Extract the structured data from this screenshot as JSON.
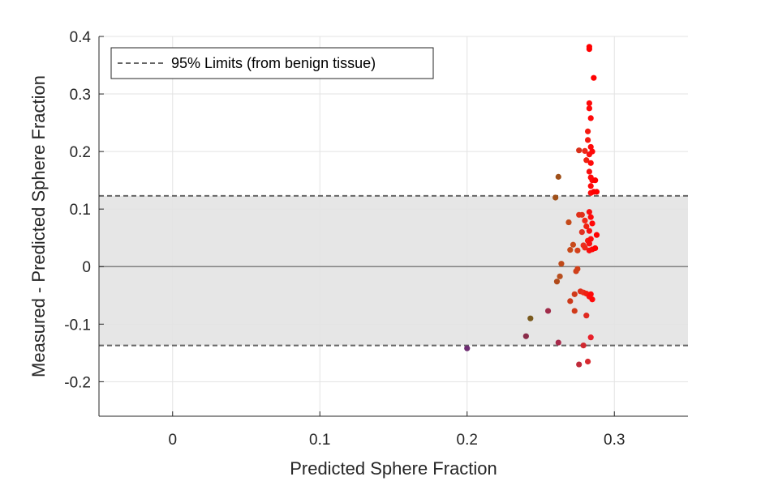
{
  "chart_data": {
    "type": "scatter",
    "xlabel": "Predicted Sphere Fraction",
    "ylabel": "Measured - Predicted Sphere Fraction",
    "xlim": [
      -0.05,
      0.35
    ],
    "ylim": [
      -0.26,
      0.4
    ],
    "xticks": [
      0,
      0.1,
      0.2,
      0.3
    ],
    "xtick_labels": [
      "0",
      "0.1",
      "0.2",
      "0.3"
    ],
    "yticks": [
      -0.2,
      -0.1,
      0,
      0.1,
      0.2,
      0.3,
      0.4
    ],
    "ytick_labels": [
      "-0.2",
      "-0.1",
      "0",
      "0.1",
      "0.2",
      "0.3",
      "0.4"
    ],
    "grid": true,
    "legend_position": "top-left",
    "legend": [
      {
        "label": "95% Limits (from benign tissue)",
        "style": "dashed",
        "color": "#666666"
      }
    ],
    "limits": {
      "upper": 0.123,
      "lower": -0.137
    },
    "zero_line": 0,
    "colors": {
      "band": "#e6e6e6",
      "limit_line": "#666666",
      "zero_line": "#808080",
      "grid": "#e3e3e3",
      "axis": "#262626"
    },
    "points": [
      {
        "x": 0.2,
        "y": -0.142,
        "color": "#6f2d73"
      },
      {
        "x": 0.24,
        "y": -0.121,
        "color": "#8a2c4a"
      },
      {
        "x": 0.243,
        "y": -0.09,
        "color": "#7a5a1e"
      },
      {
        "x": 0.255,
        "y": -0.077,
        "color": "#a02c4a"
      },
      {
        "x": 0.26,
        "y": 0.12,
        "color": "#a0501a"
      },
      {
        "x": 0.261,
        "y": -0.026,
        "color": "#b04a1a"
      },
      {
        "x": 0.262,
        "y": 0.156,
        "color": "#a0501a"
      },
      {
        "x": 0.262,
        "y": -0.132,
        "color": "#a82a4a"
      },
      {
        "x": 0.263,
        "y": -0.017,
        "color": "#b85020"
      },
      {
        "x": 0.264,
        "y": 0.005,
        "color": "#c04a1a"
      },
      {
        "x": 0.269,
        "y": 0.077,
        "color": "#c44a1a"
      },
      {
        "x": 0.27,
        "y": 0.029,
        "color": "#c84a1a"
      },
      {
        "x": 0.27,
        "y": -0.06,
        "color": "#cc3a1a"
      },
      {
        "x": 0.272,
        "y": 0.038,
        "color": "#c84a1a"
      },
      {
        "x": 0.273,
        "y": -0.048,
        "color": "#d03a1a"
      },
      {
        "x": 0.273,
        "y": -0.077,
        "color": "#d03a1a"
      },
      {
        "x": 0.274,
        "y": -0.008,
        "color": "#d0401a"
      },
      {
        "x": 0.275,
        "y": 0.028,
        "color": "#d4401a"
      },
      {
        "x": 0.275,
        "y": -0.004,
        "color": "#d0401a"
      },
      {
        "x": 0.276,
        "y": 0.09,
        "color": "#e0301a"
      },
      {
        "x": 0.276,
        "y": 0.202,
        "color": "#d8301a"
      },
      {
        "x": 0.276,
        "y": -0.17,
        "color": "#c02a3a"
      },
      {
        "x": 0.277,
        "y": -0.043,
        "color": "#e0301a"
      },
      {
        "x": 0.278,
        "y": 0.09,
        "color": "#e0301a"
      },
      {
        "x": 0.278,
        "y": 0.06,
        "color": "#e03020"
      },
      {
        "x": 0.279,
        "y": 0.037,
        "color": "#e83020"
      },
      {
        "x": 0.279,
        "y": -0.045,
        "color": "#e83020"
      },
      {
        "x": 0.279,
        "y": -0.137,
        "color": "#d02a30"
      },
      {
        "x": 0.28,
        "y": 0.08,
        "color": "#f02818"
      },
      {
        "x": 0.28,
        "y": 0.033,
        "color": "#ee2818"
      },
      {
        "x": 0.28,
        "y": 0.201,
        "color": "#ee2818"
      },
      {
        "x": 0.281,
        "y": 0.185,
        "color": "#f02010"
      },
      {
        "x": 0.281,
        "y": 0.07,
        "color": "#f02010"
      },
      {
        "x": 0.281,
        "y": -0.085,
        "color": "#e02a20"
      },
      {
        "x": 0.281,
        "y": -0.047,
        "color": "#f02010"
      },
      {
        "x": 0.282,
        "y": 0.235,
        "color": "#f51a10"
      },
      {
        "x": 0.282,
        "y": 0.22,
        "color": "#f51a10"
      },
      {
        "x": 0.282,
        "y": 0.045,
        "color": "#f51a10"
      },
      {
        "x": 0.282,
        "y": -0.165,
        "color": "#d82a30"
      },
      {
        "x": 0.283,
        "y": 0.382,
        "color": "#ff0000"
      },
      {
        "x": 0.283,
        "y": 0.378,
        "color": "#ff0000"
      },
      {
        "x": 0.283,
        "y": 0.284,
        "color": "#ff0a0a"
      },
      {
        "x": 0.283,
        "y": 0.275,
        "color": "#ff0a0a"
      },
      {
        "x": 0.283,
        "y": 0.195,
        "color": "#f81010"
      },
      {
        "x": 0.283,
        "y": 0.165,
        "color": "#f81010"
      },
      {
        "x": 0.283,
        "y": 0.095,
        "color": "#f81010"
      },
      {
        "x": 0.283,
        "y": 0.062,
        "color": "#f81010"
      },
      {
        "x": 0.283,
        "y": 0.04,
        "color": "#f81010"
      },
      {
        "x": 0.283,
        "y": 0.028,
        "color": "#f81010"
      },
      {
        "x": 0.283,
        "y": -0.052,
        "color": "#f81010"
      },
      {
        "x": 0.284,
        "y": 0.258,
        "color": "#ff0a0a"
      },
      {
        "x": 0.284,
        "y": 0.208,
        "color": "#ff0a0a"
      },
      {
        "x": 0.284,
        "y": 0.18,
        "color": "#ff0a0a"
      },
      {
        "x": 0.284,
        "y": 0.155,
        "color": "#ff0a0a"
      },
      {
        "x": 0.284,
        "y": 0.14,
        "color": "#ff0a0a"
      },
      {
        "x": 0.284,
        "y": 0.128,
        "color": "#ff0a0a"
      },
      {
        "x": 0.284,
        "y": 0.086,
        "color": "#ff0a0a"
      },
      {
        "x": 0.284,
        "y": 0.048,
        "color": "#ff0a0a"
      },
      {
        "x": 0.284,
        "y": -0.048,
        "color": "#ff0a0a"
      },
      {
        "x": 0.284,
        "y": -0.123,
        "color": "#e8202a"
      },
      {
        "x": 0.285,
        "y": 0.2,
        "color": "#ff0808"
      },
      {
        "x": 0.285,
        "y": 0.15,
        "color": "#ff0808"
      },
      {
        "x": 0.285,
        "y": 0.075,
        "color": "#ff0808"
      },
      {
        "x": 0.285,
        "y": 0.03,
        "color": "#ff0808"
      },
      {
        "x": 0.285,
        "y": -0.057,
        "color": "#ff0808"
      },
      {
        "x": 0.286,
        "y": 0.328,
        "color": "#ff0000"
      },
      {
        "x": 0.286,
        "y": 0.13,
        "color": "#ff0000"
      },
      {
        "x": 0.287,
        "y": 0.15,
        "color": "#ff0000"
      },
      {
        "x": 0.287,
        "y": 0.032,
        "color": "#ff0000"
      },
      {
        "x": 0.288,
        "y": 0.13,
        "color": "#ff0000"
      },
      {
        "x": 0.288,
        "y": 0.055,
        "color": "#ff0000"
      }
    ]
  }
}
